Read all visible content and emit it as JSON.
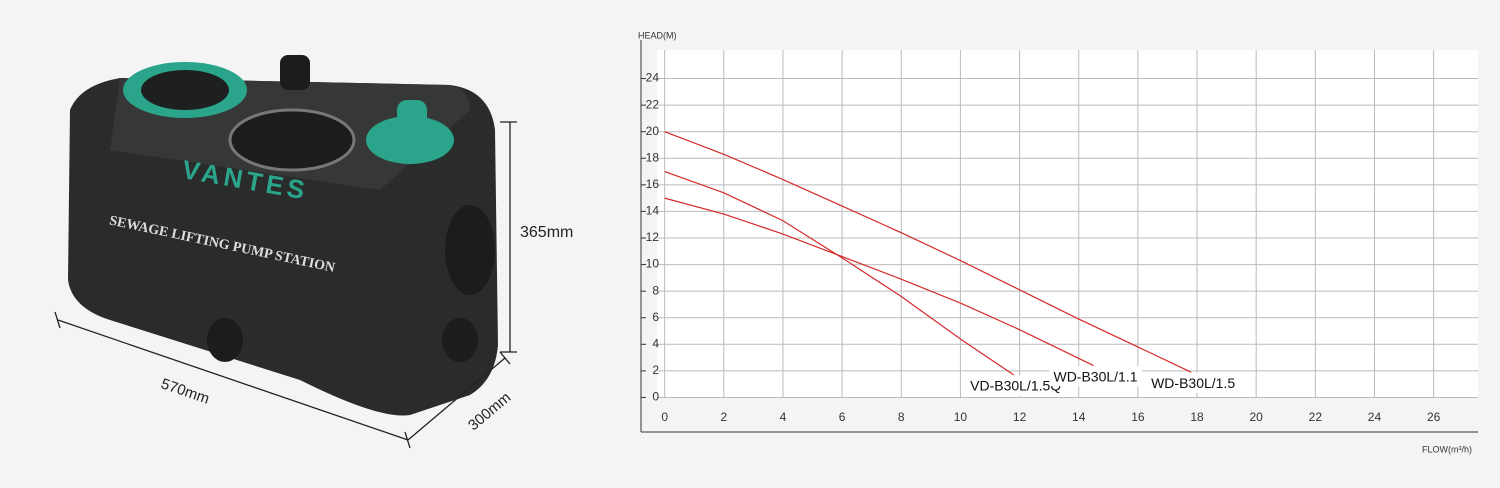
{
  "product": {
    "brand": "VANTES",
    "label": "SEWAGE LIFTING PUMP STATION",
    "height": "365mm",
    "length": "570mm",
    "depth": "300mm"
  },
  "chart_data": {
    "type": "line",
    "y_label": "HEAD(M)",
    "x_label": "FLOW(m³/h)",
    "xlim": [
      -0.8,
      27.5
    ],
    "ylim": [
      -2.6,
      26.9
    ],
    "xticks": [
      0,
      2,
      4,
      6,
      8,
      10,
      12,
      14,
      16,
      18,
      20,
      22,
      24,
      26
    ],
    "yticks": [
      0,
      2,
      4,
      6,
      8,
      10,
      12,
      14,
      16,
      18,
      20,
      22,
      24
    ],
    "grid": true,
    "series": [
      {
        "name": "VD-B30L/1.5Q",
        "color": "#d62a2a",
        "x": [
          0,
          2,
          4,
          6,
          8,
          10,
          11.8
        ],
        "values": [
          17,
          15.4,
          13.3,
          10.5,
          7.6,
          4.4,
          1.7
        ]
      },
      {
        "name": "WD-B30L/1.1",
        "color": "#d62a2a",
        "x": [
          0,
          2,
          4,
          6,
          8,
          10,
          12,
          14.5
        ],
        "values": [
          15,
          13.8,
          12.3,
          10.6,
          8.9,
          7.1,
          5.1,
          2.4
        ]
      },
      {
        "name": "WD-B30L/1.5",
        "color": "#d62a2a",
        "x": [
          0,
          2,
          4,
          6,
          8,
          10,
          12,
          14,
          16,
          17.8
        ],
        "values": [
          20,
          18.3,
          16.4,
          14.4,
          12.4,
          10.3,
          8.1,
          5.9,
          3.8,
          1.9
        ]
      }
    ]
  }
}
